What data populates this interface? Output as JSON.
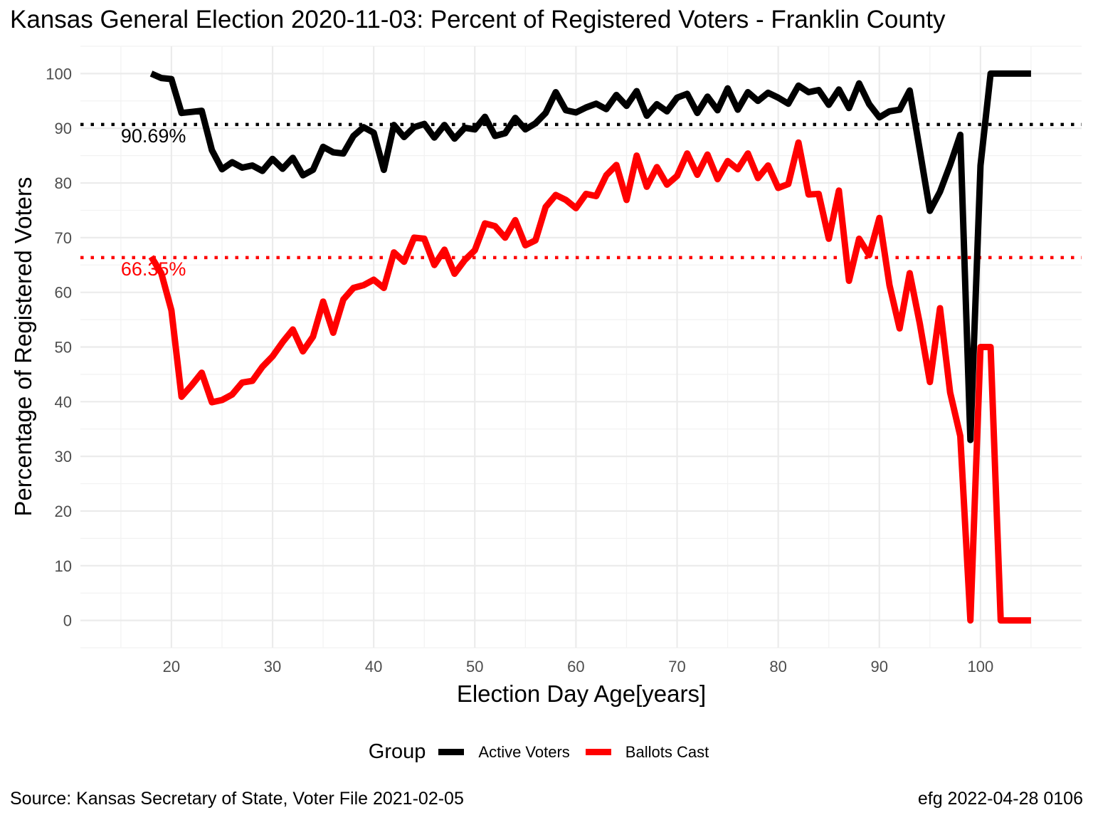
{
  "chart_data": {
    "type": "line",
    "title": "Kansas General Election 2020-11-03:  Percent of Registered Voters - Franklin County",
    "xlabel": "Election Day Age[years]",
    "ylabel": "Percentage of Registered Voters",
    "xlim": [
      11,
      110
    ],
    "ylim": [
      -5,
      105
    ],
    "x_ticks": [
      20,
      30,
      40,
      50,
      60,
      70,
      80,
      90,
      100
    ],
    "y_ticks": [
      0,
      10,
      20,
      30,
      40,
      50,
      60,
      70,
      80,
      90,
      100
    ],
    "grid": true,
    "legend": {
      "position": "bottom",
      "title": "Group"
    },
    "x": [
      18,
      19,
      20,
      21,
      22,
      23,
      24,
      25,
      26,
      27,
      28,
      29,
      30,
      31,
      32,
      33,
      34,
      35,
      36,
      37,
      38,
      39,
      40,
      41,
      42,
      43,
      44,
      45,
      46,
      47,
      48,
      49,
      50,
      51,
      52,
      53,
      54,
      55,
      56,
      57,
      58,
      59,
      60,
      61,
      62,
      63,
      64,
      65,
      66,
      67,
      68,
      69,
      70,
      71,
      72,
      73,
      74,
      75,
      76,
      77,
      78,
      79,
      80,
      81,
      82,
      83,
      84,
      85,
      86,
      87,
      88,
      89,
      90,
      91,
      92,
      93,
      94,
      95,
      96,
      97,
      98,
      99,
      100,
      101,
      102,
      103,
      104,
      105
    ],
    "series": [
      {
        "name": "Active Voters",
        "color": "#000000",
        "values": [
          100,
          99.2,
          99,
          92.8,
          93,
          93.2,
          86,
          82.5,
          83.8,
          82.8,
          83.2,
          82.2,
          84.4,
          82.6,
          84.6,
          81.4,
          82.4,
          86.6,
          85.6,
          85.4,
          88.6,
          90.2,
          89.2,
          82.4,
          90.6,
          88.4,
          90.2,
          90.8,
          88.3,
          90.6,
          88.1,
          90.1,
          89.8,
          92.1,
          88.6,
          89.1,
          91.9,
          89.8,
          90.9,
          92.8,
          96.6,
          93.3,
          92.9,
          93.8,
          94.5,
          93.5,
          96.1,
          94.1,
          96.8,
          92.3,
          94.4,
          93.1,
          95.6,
          96.3,
          92.8,
          95.8,
          93.3,
          97.3,
          93.4,
          96.6,
          95,
          96.5,
          95.6,
          94.5,
          97.8,
          96.6,
          97,
          94.3,
          97.1,
          93.7,
          98.2,
          94.4,
          92,
          93.1,
          93.4,
          96.9,
          86,
          74.9,
          78.4,
          83.3,
          88.8,
          33,
          83.2,
          100,
          100,
          100,
          100,
          100
        ]
      },
      {
        "name": "Ballots Cast",
        "color": "#ff0000",
        "values": [
          66.5,
          63.5,
          56.7,
          40.9,
          43,
          45.3,
          39.9,
          40.3,
          41.3,
          43.5,
          43.8,
          46.4,
          48.3,
          50.9,
          53.2,
          49.2,
          51.9,
          58.3,
          52.6,
          58.7,
          60.8,
          61.3,
          62.3,
          60.8,
          67.3,
          65.6,
          70,
          69.8,
          65,
          67.8,
          63.4,
          65.9,
          67.7,
          72.6,
          72.1,
          70,
          73.2,
          68.6,
          69.5,
          75.6,
          77.8,
          76.9,
          75.4,
          78,
          77.6,
          81.4,
          83.3,
          76.9,
          85,
          79.3,
          82.9,
          79.7,
          81.3,
          85.4,
          81.5,
          85.2,
          80.7,
          84,
          82.5,
          85.4,
          80.9,
          83.2,
          79.1,
          79.8,
          87.4,
          77.9,
          78,
          69.8,
          78.6,
          62.1,
          69.8,
          66.8,
          73.6,
          61.3,
          53.4,
          63.5,
          54.3,
          43.6,
          57.1,
          41.7,
          33.7,
          0,
          50,
          50,
          0,
          0,
          0,
          0
        ]
      }
    ],
    "reference_lines": [
      {
        "series": "Active Voters",
        "value": 90.69,
        "label": "90.69%",
        "color": "#000000"
      },
      {
        "series": "Ballots Cast",
        "value": 66.35,
        "label": "66.35%",
        "color": "#ff0000"
      }
    ]
  },
  "footer": {
    "source": "Source:  Kansas Secretary of State, Voter File  2021-02-05",
    "credit": "efg 2022-04-28 0106"
  }
}
